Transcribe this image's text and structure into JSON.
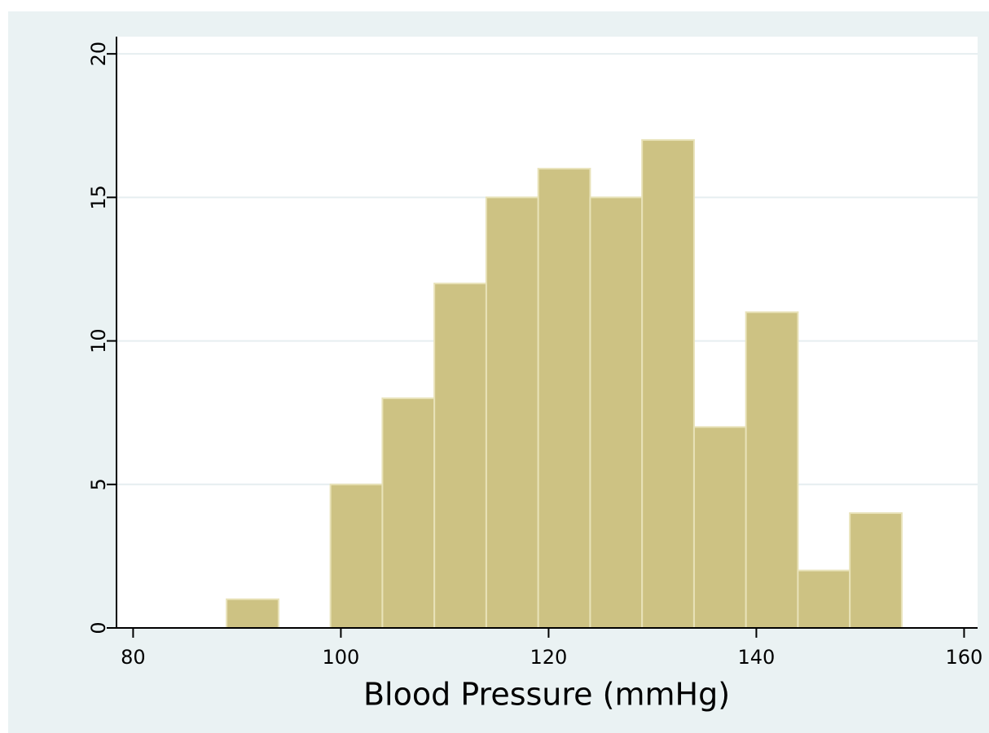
{
  "chart_data": {
    "type": "histogram",
    "x_label": "Blood Pressure (mmHg)",
    "bins": [
      89,
      94,
      99,
      104,
      109,
      114,
      119,
      124,
      129,
      134,
      139,
      144,
      149,
      154
    ],
    "values": [
      1,
      0,
      5,
      8,
      12,
      15,
      16,
      15,
      17,
      7,
      11,
      2,
      4
    ],
    "color": "#cdc283",
    "xlim": [
      78.4,
      161.3
    ],
    "xticks": [
      80,
      100,
      120,
      140,
      160
    ],
    "ylim": [
      0,
      20.6
    ],
    "yticks": [
      0,
      5,
      10,
      15,
      20
    ],
    "grid": true
  }
}
